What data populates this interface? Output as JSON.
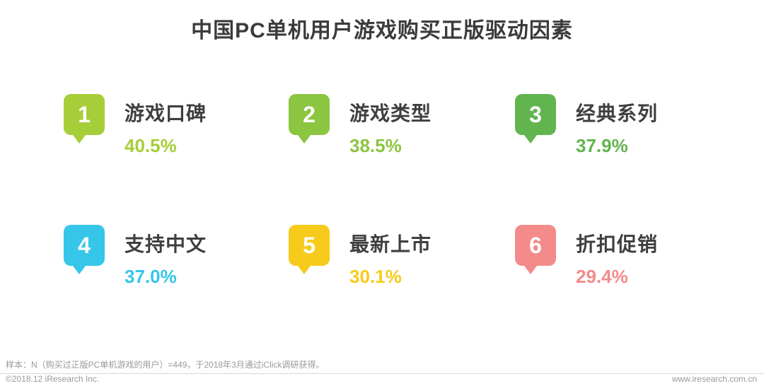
{
  "title": "中国PC单机用户游戏购买正版驱动因素",
  "items": [
    {
      "rank": "1",
      "label": "游戏口碑",
      "value": "40.5%",
      "color": "#a6ce39"
    },
    {
      "rank": "2",
      "label": "游戏类型",
      "value": "38.5%",
      "color": "#8cc540"
    },
    {
      "rank": "3",
      "label": "经典系列",
      "value": "37.9%",
      "color": "#62b44f"
    },
    {
      "rank": "4",
      "label": "支持中文",
      "value": "37.0%",
      "color": "#36c6e9"
    },
    {
      "rank": "5",
      "label": "最新上市",
      "value": "30.1%",
      "color": "#f6cb1c"
    },
    {
      "rank": "6",
      "label": "折扣促销",
      "value": "29.4%",
      "color": "#f48b8b"
    }
  ],
  "footer": {
    "sample_note": "样本：N（购买过正版PC单机游戏的用户）=449，于2018年3月通过iClick调研获得。",
    "copyright": "©2018.12 iResearch Inc.",
    "website": "www.iresearch.com.cn"
  },
  "chart_data": {
    "type": "table",
    "title": "中国PC单机用户游戏购买正版驱动因素",
    "categories": [
      "游戏口碑",
      "游戏类型",
      "经典系列",
      "支持中文",
      "最新上市",
      "折扣促销"
    ],
    "values": [
      40.5,
      38.5,
      37.9,
      37.0,
      30.1,
      29.4
    ],
    "unit": "%",
    "ranks": [
      1,
      2,
      3,
      4,
      5,
      6
    ],
    "colors": [
      "#a6ce39",
      "#8cc540",
      "#62b44f",
      "#36c6e9",
      "#f6cb1c",
      "#f48b8b"
    ]
  }
}
